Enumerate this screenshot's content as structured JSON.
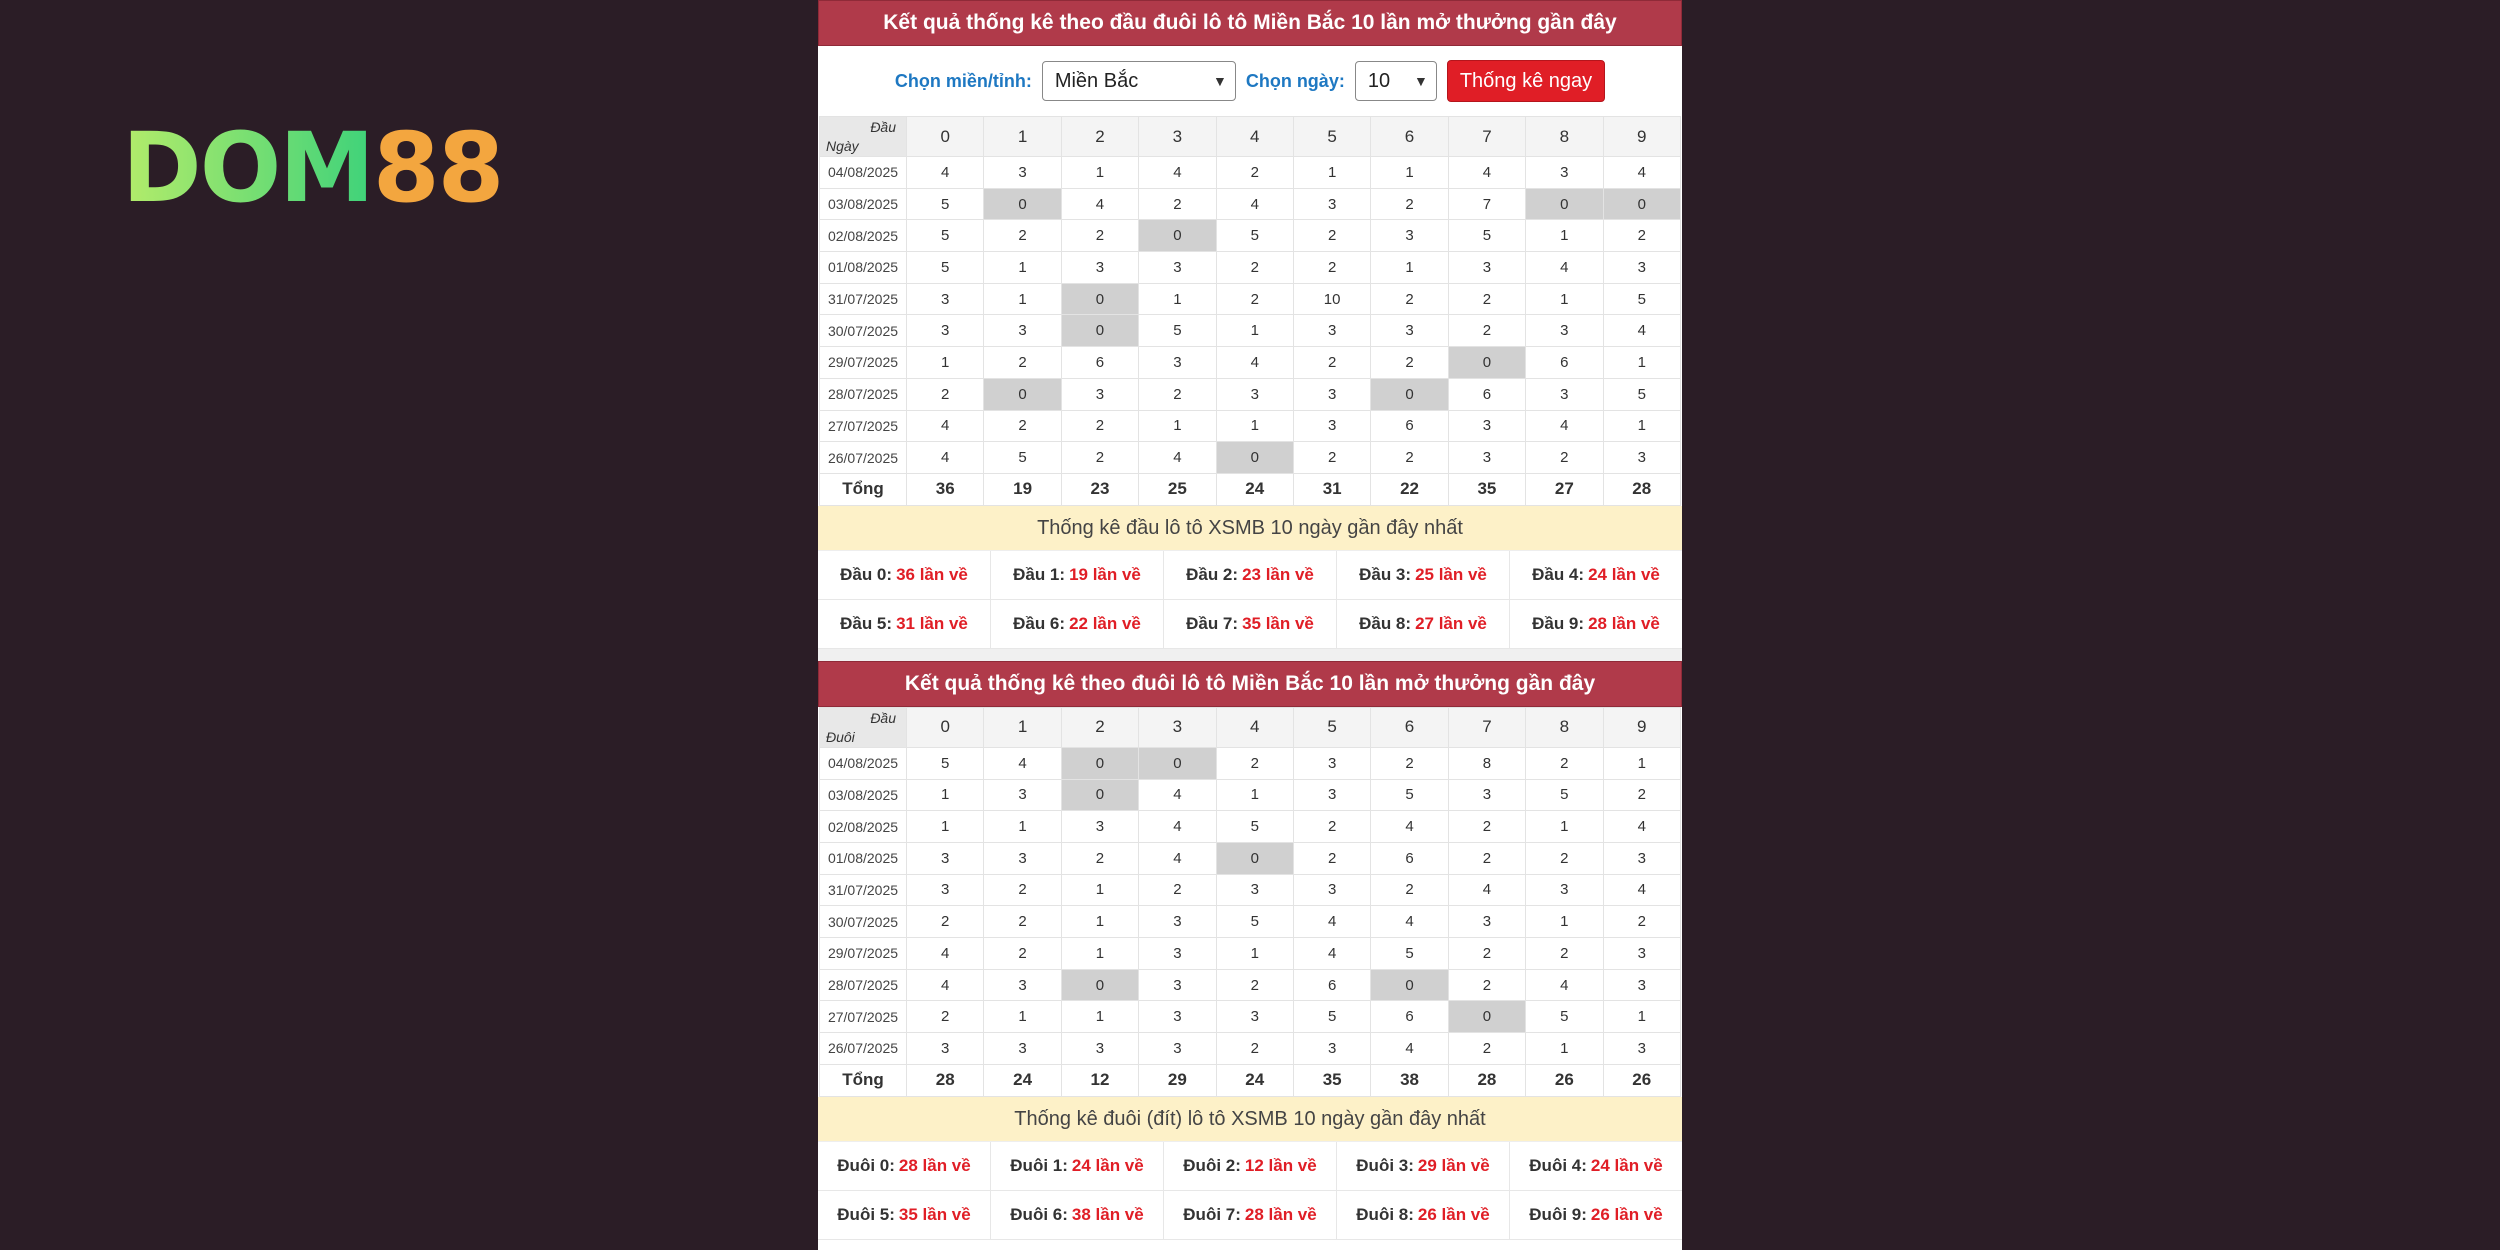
{
  "logo": {
    "dom": "DOM",
    "num": "88"
  },
  "colors": {
    "header": "#b03a4a",
    "button": "#e01e26",
    "label": "#1e78c2",
    "zero_cell": "#d0d0d0",
    "stat_bg": "#fdf1c8",
    "value": "#e01e26"
  },
  "dau": {
    "title": "Kết quả thống kê theo đầu đuôi lô tô Miền Bắc 10 lần mở thưởng gần đây",
    "corner_top": "Đầu",
    "corner_bottom": "Ngày",
    "columns": [
      "0",
      "1",
      "2",
      "3",
      "4",
      "5",
      "6",
      "7",
      "8",
      "9"
    ],
    "rows": [
      {
        "date": "04/08/2025",
        "values": [
          "4",
          "3",
          "1",
          "4",
          "2",
          "1",
          "1",
          "4",
          "3",
          "4"
        ]
      },
      {
        "date": "03/08/2025",
        "values": [
          "5",
          "0",
          "4",
          "2",
          "4",
          "3",
          "2",
          "7",
          "0",
          "0"
        ]
      },
      {
        "date": "02/08/2025",
        "values": [
          "5",
          "2",
          "2",
          "0",
          "5",
          "2",
          "3",
          "5",
          "1",
          "2"
        ]
      },
      {
        "date": "01/08/2025",
        "values": [
          "5",
          "1",
          "3",
          "3",
          "2",
          "2",
          "1",
          "3",
          "4",
          "3"
        ]
      },
      {
        "date": "31/07/2025",
        "values": [
          "3",
          "1",
          "0",
          "1",
          "2",
          "10",
          "2",
          "2",
          "1",
          "5"
        ]
      },
      {
        "date": "30/07/2025",
        "values": [
          "3",
          "3",
          "0",
          "5",
          "1",
          "3",
          "3",
          "2",
          "3",
          "4"
        ]
      },
      {
        "date": "29/07/2025",
        "values": [
          "1",
          "2",
          "6",
          "3",
          "4",
          "2",
          "2",
          "0",
          "6",
          "1"
        ]
      },
      {
        "date": "28/07/2025",
        "values": [
          "2",
          "0",
          "3",
          "2",
          "3",
          "3",
          "0",
          "6",
          "3",
          "5"
        ]
      },
      {
        "date": "27/07/2025",
        "values": [
          "4",
          "2",
          "2",
          "1",
          "1",
          "3",
          "6",
          "3",
          "4",
          "1"
        ]
      },
      {
        "date": "26/07/2025",
        "values": [
          "4",
          "5",
          "2",
          "4",
          "0",
          "2",
          "2",
          "3",
          "2",
          "3"
        ]
      }
    ],
    "total_label": "Tổng",
    "totals": [
      "36",
      "19",
      "23",
      "25",
      "24",
      "31",
      "22",
      "35",
      "27",
      "28"
    ],
    "stat_title": "Thống kê đầu lô tô XSMB 10 ngày gần đây nhất",
    "stats": [
      {
        "label": "Đầu 0:",
        "value": "36 lần về"
      },
      {
        "label": "Đầu 1:",
        "value": "19 lần về"
      },
      {
        "label": "Đầu 2:",
        "value": "23 lần về"
      },
      {
        "label": "Đầu 3:",
        "value": "25 lần về"
      },
      {
        "label": "Đầu 4:",
        "value": "24 lần về"
      },
      {
        "label": "Đầu 5:",
        "value": "31 lần về"
      },
      {
        "label": "Đầu 6:",
        "value": "22 lần về"
      },
      {
        "label": "Đầu 7:",
        "value": "35 lần về"
      },
      {
        "label": "Đầu 8:",
        "value": "27 lần về"
      },
      {
        "label": "Đầu 9:",
        "value": "28 lần về"
      }
    ]
  },
  "controls": {
    "region_label": "Chọn miền/tỉnh:",
    "region_value": "Miền Bắc",
    "days_label": "Chọn ngày:",
    "days_value": "10",
    "submit": "Thống kê ngay"
  },
  "duoi": {
    "title": "Kết quả thống kê theo đuôi lô tô Miền Bắc 10 lần mở thưởng gần đây",
    "corner_top": "Đầu",
    "corner_bottom": "Đuôi",
    "columns": [
      "0",
      "1",
      "2",
      "3",
      "4",
      "5",
      "6",
      "7",
      "8",
      "9"
    ],
    "rows": [
      {
        "date": "04/08/2025",
        "values": [
          "5",
          "4",
          "0",
          "0",
          "2",
          "3",
          "2",
          "8",
          "2",
          "1"
        ]
      },
      {
        "date": "03/08/2025",
        "values": [
          "1",
          "3",
          "0",
          "4",
          "1",
          "3",
          "5",
          "3",
          "5",
          "2"
        ]
      },
      {
        "date": "02/08/2025",
        "values": [
          "1",
          "1",
          "3",
          "4",
          "5",
          "2",
          "4",
          "2",
          "1",
          "4"
        ]
      },
      {
        "date": "01/08/2025",
        "values": [
          "3",
          "3",
          "2",
          "4",
          "0",
          "2",
          "6",
          "2",
          "2",
          "3"
        ]
      },
      {
        "date": "31/07/2025",
        "values": [
          "3",
          "2",
          "1",
          "2",
          "3",
          "3",
          "2",
          "4",
          "3",
          "4"
        ]
      },
      {
        "date": "30/07/2025",
        "values": [
          "2",
          "2",
          "1",
          "3",
          "5",
          "4",
          "4",
          "3",
          "1",
          "2"
        ]
      },
      {
        "date": "29/07/2025",
        "values": [
          "4",
          "2",
          "1",
          "3",
          "1",
          "4",
          "5",
          "2",
          "2",
          "3"
        ]
      },
      {
        "date": "28/07/2025",
        "values": [
          "4",
          "3",
          "0",
          "3",
          "2",
          "6",
          "0",
          "2",
          "4",
          "3"
        ]
      },
      {
        "date": "27/07/2025",
        "values": [
          "2",
          "1",
          "1",
          "3",
          "3",
          "5",
          "6",
          "0",
          "5",
          "1"
        ]
      },
      {
        "date": "26/07/2025",
        "values": [
          "3",
          "3",
          "3",
          "3",
          "2",
          "3",
          "4",
          "2",
          "1",
          "3"
        ]
      }
    ],
    "total_label": "Tổng",
    "totals": [
      "28",
      "24",
      "12",
      "29",
      "24",
      "35",
      "38",
      "28",
      "26",
      "26"
    ],
    "stat_title": "Thống kê đuôi (đít) lô tô XSMB 10 ngày gần đây nhất",
    "stats": [
      {
        "label": "Đuôi 0:",
        "value": "28 lần về"
      },
      {
        "label": "Đuôi 1:",
        "value": "24 lần về"
      },
      {
        "label": "Đuôi 2:",
        "value": "12 lần về"
      },
      {
        "label": "Đuôi 3:",
        "value": "29 lần về"
      },
      {
        "label": "Đuôi 4:",
        "value": "24 lần về"
      },
      {
        "label": "Đuôi 5:",
        "value": "35 lần về"
      },
      {
        "label": "Đuôi 6:",
        "value": "38 lần về"
      },
      {
        "label": "Đuôi 7:",
        "value": "28 lần về"
      },
      {
        "label": "Đuôi 8:",
        "value": "26 lần về"
      },
      {
        "label": "Đuôi 9:",
        "value": "26 lần về"
      }
    ]
  }
}
